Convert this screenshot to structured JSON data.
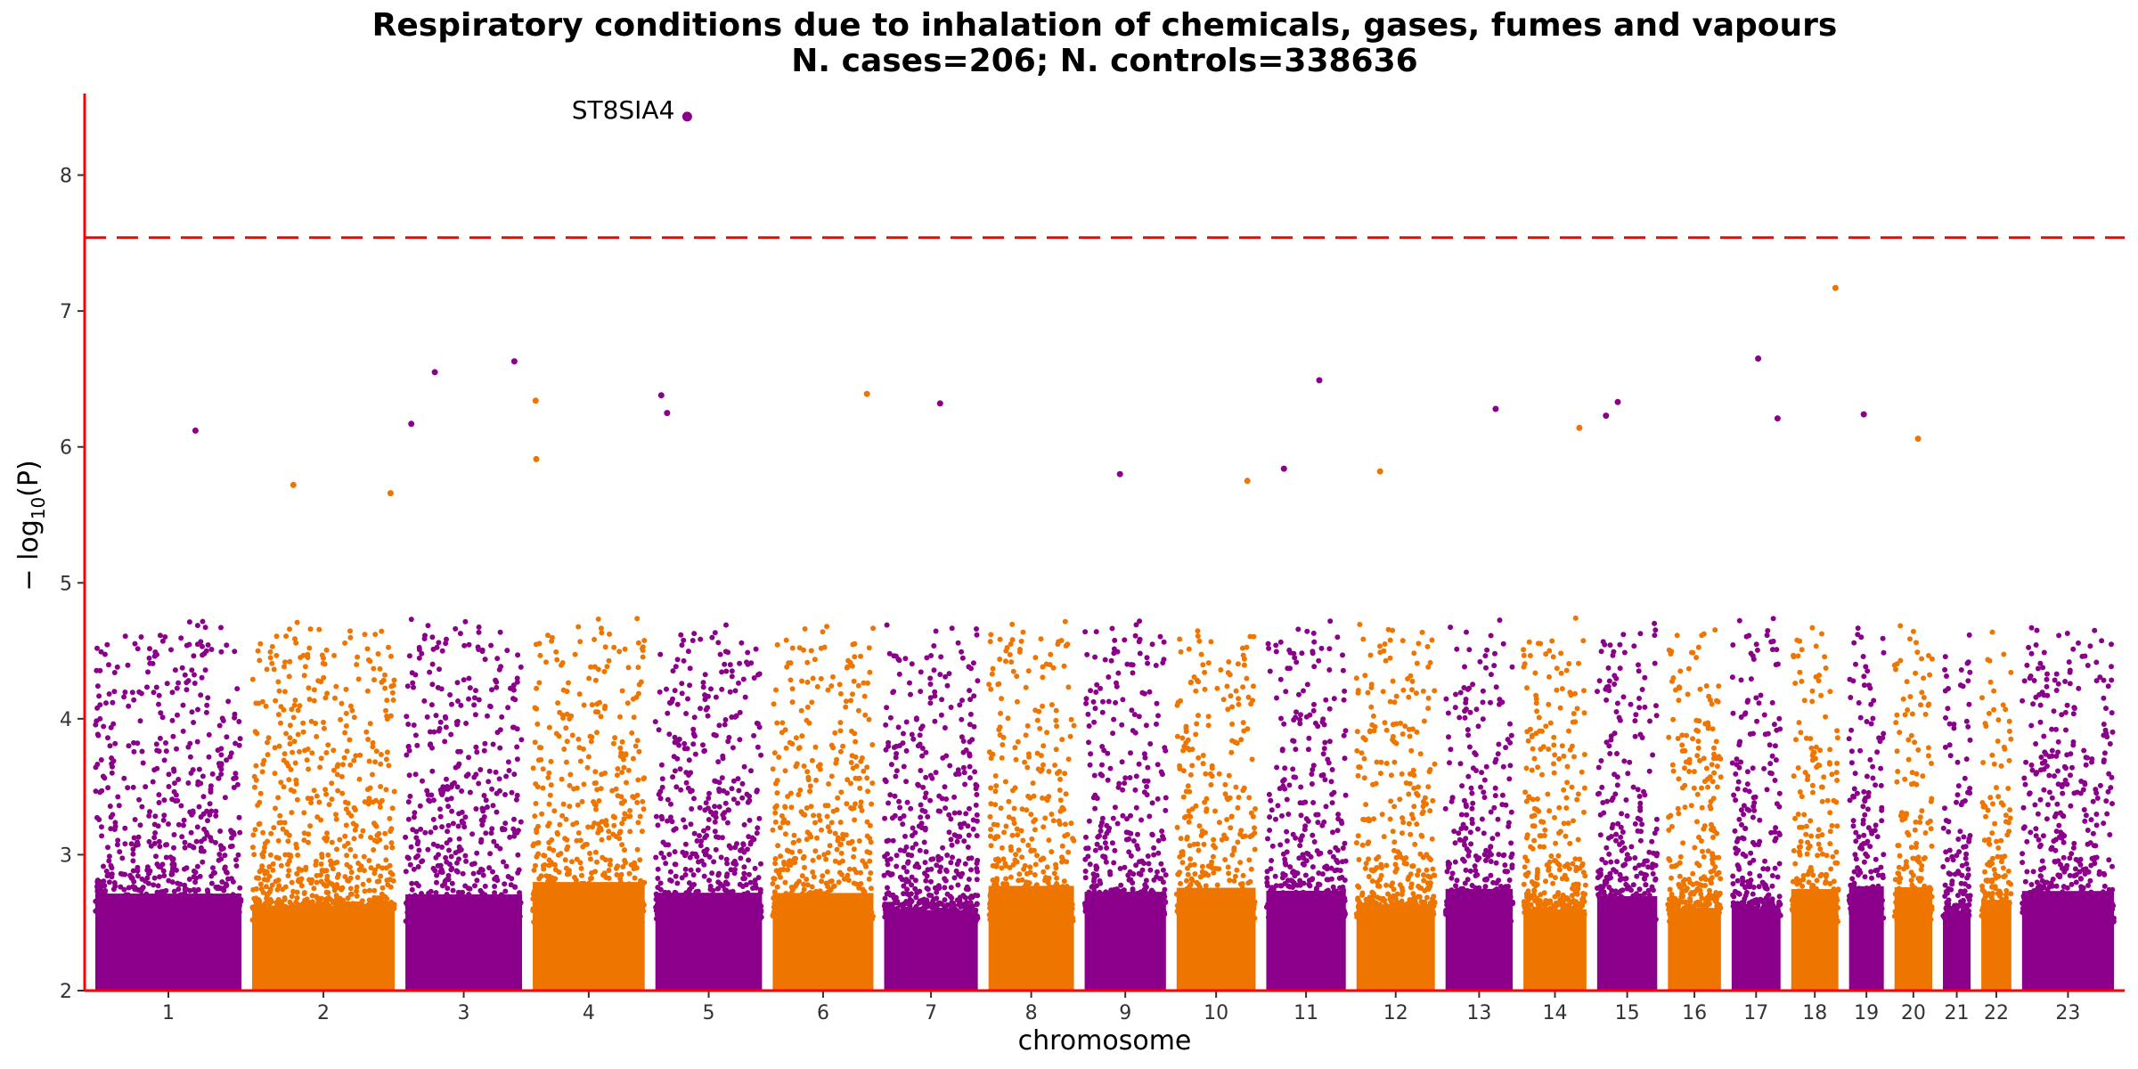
{
  "chart_data": {
    "type": "scatter",
    "subtype": "manhattan",
    "title": "Respiratory conditions due to inhalation of chemicals, gases, fumes and vapours",
    "subtitle": "N. cases=206; N. controls=338636",
    "xlabel": "chromosome",
    "ylabel_main": "− log",
    "ylabel_sub": "10",
    "ylabel_tail": "(P)",
    "ylim": [
      2,
      8.6
    ],
    "yticks": [
      "2",
      "3",
      "4",
      "5",
      "6",
      "7",
      "8"
    ],
    "significance_threshold": 7.54,
    "colors": {
      "odd": "#8B008B",
      "even": "#EE7600",
      "threshold": "#FF0000",
      "axis": "#FF0000"
    },
    "chromosomes": [
      {
        "label": "1",
        "length": 248
      },
      {
        "label": "2",
        "length": 242
      },
      {
        "label": "3",
        "length": 198
      },
      {
        "label": "4",
        "length": 190
      },
      {
        "label": "5",
        "length": 181
      },
      {
        "label": "6",
        "length": 171
      },
      {
        "label": "7",
        "length": 159
      },
      {
        "label": "8",
        "length": 145
      },
      {
        "label": "9",
        "length": 138
      },
      {
        "label": "10",
        "length": 134
      },
      {
        "label": "11",
        "length": 135
      },
      {
        "label": "12",
        "length": 133
      },
      {
        "label": "13",
        "length": 114
      },
      {
        "label": "14",
        "length": 107
      },
      {
        "label": "15",
        "length": 102
      },
      {
        "label": "16",
        "length": 90
      },
      {
        "label": "17",
        "length": 83
      },
      {
        "label": "18",
        "length": 80
      },
      {
        "label": "19",
        "length": 59
      },
      {
        "label": "20",
        "length": 64
      },
      {
        "label": "21",
        "length": 47
      },
      {
        "label": "22",
        "length": 51
      },
      {
        "label": "23",
        "length": 156
      }
    ],
    "peaks": [
      {
        "chr": "1",
        "pos": 170,
        "y": 6.12
      },
      {
        "chr": "2",
        "pos": 70,
        "y": 5.72
      },
      {
        "chr": "2",
        "pos": 235,
        "y": 5.66
      },
      {
        "chr": "3",
        "pos": 10,
        "y": 6.17
      },
      {
        "chr": "3",
        "pos": 50,
        "y": 6.55
      },
      {
        "chr": "3",
        "pos": 185,
        "y": 6.63
      },
      {
        "chr": "4",
        "pos": 5,
        "y": 6.34
      },
      {
        "chr": "4",
        "pos": 6,
        "y": 5.91
      },
      {
        "chr": "5",
        "pos": 10,
        "y": 6.38
      },
      {
        "chr": "5",
        "pos": 20,
        "y": 6.25
      },
      {
        "chr": "6",
        "pos": 160,
        "y": 6.39
      },
      {
        "chr": "7",
        "pos": 95,
        "y": 6.32
      },
      {
        "chr": "9",
        "pos": 60,
        "y": 5.8
      },
      {
        "chr": "10",
        "pos": 120,
        "y": 5.75
      },
      {
        "chr": "11",
        "pos": 30,
        "y": 5.84
      },
      {
        "chr": "11",
        "pos": 90,
        "y": 6.49
      },
      {
        "chr": "12",
        "pos": 40,
        "y": 5.82
      },
      {
        "chr": "13",
        "pos": 85,
        "y": 6.28
      },
      {
        "chr": "14",
        "pos": 95,
        "y": 6.14
      },
      {
        "chr": "15",
        "pos": 15,
        "y": 6.23
      },
      {
        "chr": "15",
        "pos": 35,
        "y": 6.33
      },
      {
        "chr": "17",
        "pos": 45,
        "y": 6.65
      },
      {
        "chr": "17",
        "pos": 78,
        "y": 6.21
      },
      {
        "chr": "18",
        "pos": 75,
        "y": 7.17
      },
      {
        "chr": "19",
        "pos": 25,
        "y": 6.24
      },
      {
        "chr": "20",
        "pos": 40,
        "y": 6.06
      }
    ],
    "top_hit": {
      "chr": "5",
      "pos": 1,
      "y": 8.43,
      "gene": "ST8SIA4"
    }
  }
}
